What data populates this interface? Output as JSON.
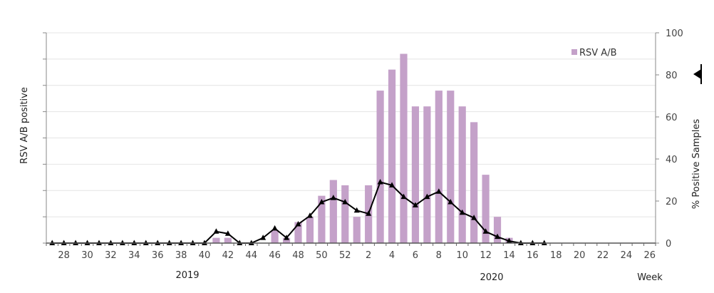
{
  "chart_data": {
    "type": "bar",
    "categories": [
      "27",
      "28",
      "29",
      "30",
      "31",
      "32",
      "33",
      "34",
      "35",
      "36",
      "37",
      "38",
      "39",
      "40",
      "41",
      "42",
      "43",
      "44",
      "45",
      "46",
      "47",
      "48",
      "49",
      "50",
      "51",
      "52",
      "1",
      "2",
      "3",
      "4",
      "5",
      "6",
      "7",
      "8",
      "9",
      "10",
      "11",
      "12",
      "13",
      "14",
      "15",
      "16",
      "17",
      "18",
      "19",
      "20",
      "21",
      "22",
      "23",
      "24",
      "25",
      "26"
    ],
    "x_tick_labels": [
      "28",
      "30",
      "32",
      "34",
      "36",
      "38",
      "40",
      "42",
      "44",
      "46",
      "48",
      "50",
      "52",
      "2",
      "4",
      "6",
      "8",
      "10",
      "12",
      "14",
      "16",
      "18",
      "20",
      "22",
      "24",
      "26"
    ],
    "year_labels": [
      "2019",
      "2020"
    ],
    "xlabel": "Week",
    "ylabel_left": "RSV A/B positive",
    "ylabel_right": "% Positive Samples",
    "y_right_range": [
      0,
      100
    ],
    "y_right_ticks": [
      "0",
      "20",
      "40",
      "60",
      "80",
      "100"
    ],
    "y_left_range": [
      0,
      8
    ],
    "legend": {
      "position": "top-right",
      "label": "RSV A/B"
    },
    "colors": {
      "bars": "#c4a1c9",
      "line": "#000000",
      "grid": "#e4e4e4"
    },
    "series": [
      {
        "name": "RSV A/B",
        "type": "bar",
        "axis": "left",
        "values": [
          0,
          0,
          0,
          0,
          0,
          0,
          0,
          0,
          0,
          0,
          0,
          0,
          0,
          0,
          0.2,
          0.2,
          0,
          0,
          0,
          0.5,
          0.2,
          0.8,
          1,
          1.8,
          2.4,
          2.2,
          1,
          2.2,
          5.8,
          6.6,
          7.2,
          5.2,
          5.2,
          5.8,
          5.8,
          5.2,
          4.6,
          2.6,
          1,
          0.2,
          0,
          0,
          0,
          0,
          0,
          0,
          0,
          0,
          0,
          0,
          0,
          0
        ]
      },
      {
        "type": "line",
        "axis": "right",
        "values": [
          0,
          0,
          0,
          0,
          0,
          0,
          0,
          0,
          0,
          0,
          0,
          0,
          0,
          0,
          5.5,
          4.5,
          0,
          0,
          2.5,
          7,
          2.5,
          9,
          13,
          19.5,
          21.5,
          19.5,
          15.5,
          14,
          29,
          27.5,
          22,
          18,
          22,
          24.5,
          19.5,
          14.5,
          12,
          5.5,
          3,
          1,
          0,
          0,
          0,
          null,
          null,
          null,
          null,
          null,
          null,
          null,
          null,
          null
        ]
      }
    ]
  }
}
